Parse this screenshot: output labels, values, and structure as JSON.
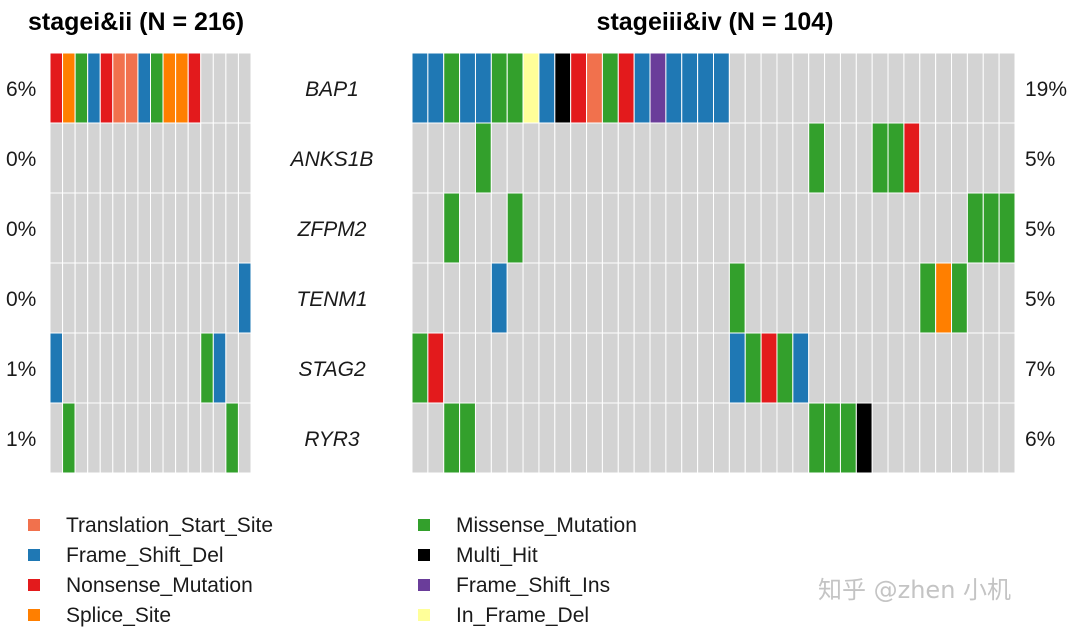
{
  "chart_data": {
    "type": "heatmap",
    "genes": [
      "BAP1",
      "ANKS1B",
      "ZFPM2",
      "TENM1",
      "STAG2",
      "RYR3"
    ],
    "colors": {
      "Translation_Start_Site": "#f1714d",
      "Frame_Shift_Del": "#1f78b4",
      "Nonsense_Mutation": "#e31a1c",
      "Splice_Site": "#ff7f00",
      "Missense_Mutation": "#33a02c",
      "Multi_Hit": "#000000",
      "Frame_Shift_Ins": "#6a3d9a",
      "In_Frame_Del": "#ffff99",
      "none": "#d3d3d3"
    },
    "panels": [
      {
        "title": "stagei&ii (N = 216)",
        "samples": 16,
        "percents": [
          "6%",
          "0%",
          "0%",
          "0%",
          "1%",
          "1%"
        ],
        "matrix": [
          [
            "Nonsense_Mutation",
            "Splice_Site",
            "Missense_Mutation",
            "Frame_Shift_Del",
            "Nonsense_Mutation",
            "Translation_Start_Site",
            "Translation_Start_Site",
            "Frame_Shift_Del",
            "Missense_Mutation",
            "Splice_Site",
            "Splice_Site",
            "Nonsense_Mutation",
            "",
            "",
            "",
            ""
          ],
          [
            "",
            "",
            "",
            "",
            "",
            "",
            "",
            "",
            "",
            "",
            "",
            "",
            "",
            "",
            "",
            ""
          ],
          [
            "",
            "",
            "",
            "",
            "",
            "",
            "",
            "",
            "",
            "",
            "",
            "",
            "",
            "",
            "",
            ""
          ],
          [
            "",
            "",
            "",
            "",
            "",
            "",
            "",
            "",
            "",
            "",
            "",
            "",
            "",
            "",
            "",
            "Frame_Shift_Del"
          ],
          [
            "Frame_Shift_Del",
            "",
            "",
            "",
            "",
            "",
            "",
            "",
            "",
            "",
            "",
            "",
            "Missense_Mutation",
            "Frame_Shift_Del",
            "",
            ""
          ],
          [
            "",
            "Missense_Mutation",
            "",
            "",
            "",
            "",
            "",
            "",
            "",
            "",
            "",
            "",
            "",
            "",
            "Missense_Mutation",
            ""
          ]
        ]
      },
      {
        "title": "stageiii&iv (N = 104)",
        "samples": 38,
        "percents": [
          "19%",
          "5%",
          "5%",
          "5%",
          "7%",
          "6%"
        ],
        "matrix": [
          [
            "Frame_Shift_Del",
            "Frame_Shift_Del",
            "Missense_Mutation",
            "Frame_Shift_Del",
            "Frame_Shift_Del",
            "Missense_Mutation",
            "Missense_Mutation",
            "In_Frame_Del",
            "Frame_Shift_Del",
            "Multi_Hit",
            "Nonsense_Mutation",
            "Translation_Start_Site",
            "Missense_Mutation",
            "Nonsense_Mutation",
            "Frame_Shift_Del",
            "Frame_Shift_Ins",
            "Frame_Shift_Del",
            "Frame_Shift_Del",
            "Frame_Shift_Del",
            "Frame_Shift_Del",
            "",
            "",
            "",
            "",
            "",
            "",
            "",
            "",
            "",
            "",
            "",
            "",
            "",
            "",
            "",
            "",
            "",
            ""
          ],
          [
            "",
            "",
            "",
            "",
            "Missense_Mutation",
            "",
            "",
            "",
            "",
            "",
            "",
            "",
            "",
            "",
            "",
            "",
            "",
            "",
            "",
            "",
            "",
            "",
            "",
            "",
            "",
            "Missense_Mutation",
            "",
            "",
            "",
            "Missense_Mutation",
            "Missense_Mutation",
            "Nonsense_Mutation",
            "",
            "",
            "",
            "",
            "",
            ""
          ],
          [
            "",
            "",
            "Missense_Mutation",
            "",
            "",
            "",
            "Missense_Mutation",
            "",
            "",
            "",
            "",
            "",
            "",
            "",
            "",
            "",
            "",
            "",
            "",
            "",
            "",
            "",
            "",
            "",
            "",
            "",
            "",
            "",
            "",
            "",
            "",
            "",
            "",
            "",
            "",
            "Missense_Mutation",
            "Missense_Mutation",
            "Missense_Mutation"
          ],
          [
            "",
            "",
            "",
            "",
            "",
            "Frame_Shift_Del",
            "",
            "",
            "",
            "",
            "",
            "",
            "",
            "",
            "",
            "",
            "",
            "",
            "",
            "",
            "Missense_Mutation",
            "",
            "",
            "",
            "",
            "",
            "",
            "",
            "",
            "",
            "",
            "",
            "Missense_Mutation",
            "Splice_Site",
            "Missense_Mutation",
            "",
            "",
            ""
          ],
          [
            "Missense_Mutation",
            "Nonsense_Mutation",
            "",
            "",
            "",
            "",
            "",
            "",
            "",
            "",
            "",
            "",
            "",
            "",
            "",
            "",
            "",
            "",
            "",
            "",
            "Frame_Shift_Del",
            "Missense_Mutation",
            "Nonsense_Mutation",
            "Missense_Mutation",
            "Frame_Shift_Del",
            "",
            "",
            "",
            "",
            "",
            "",
            "",
            "",
            "",
            "",
            "",
            "",
            ""
          ],
          [
            "",
            "",
            "Missense_Mutation",
            "Missense_Mutation",
            "",
            "",
            "",
            "",
            "",
            "",
            "",
            "",
            "",
            "",
            "",
            "",
            "",
            "",
            "",
            "",
            "",
            "",
            "",
            "",
            "",
            "Missense_Mutation",
            "Missense_Mutation",
            "Missense_Mutation",
            "Multi_Hit",
            "",
            "",
            "",
            "",
            "",
            "",
            "",
            "",
            ""
          ]
        ]
      }
    ],
    "legend": {
      "left": [
        {
          "label": "Translation_Start_Site",
          "key": "Translation_Start_Site"
        },
        {
          "label": "Frame_Shift_Del",
          "key": "Frame_Shift_Del"
        },
        {
          "label": "Nonsense_Mutation",
          "key": "Nonsense_Mutation"
        },
        {
          "label": "Splice_Site",
          "key": "Splice_Site"
        }
      ],
      "right": [
        {
          "label": "Missense_Mutation",
          "key": "Missense_Mutation"
        },
        {
          "label": "Multi_Hit",
          "key": "Multi_Hit"
        },
        {
          "label": "Frame_Shift_Ins",
          "key": "Frame_Shift_Ins"
        },
        {
          "label": "In_Frame_Del",
          "key": "In_Frame_Del"
        }
      ]
    }
  },
  "watermark": "知乎 @zhen 小机"
}
